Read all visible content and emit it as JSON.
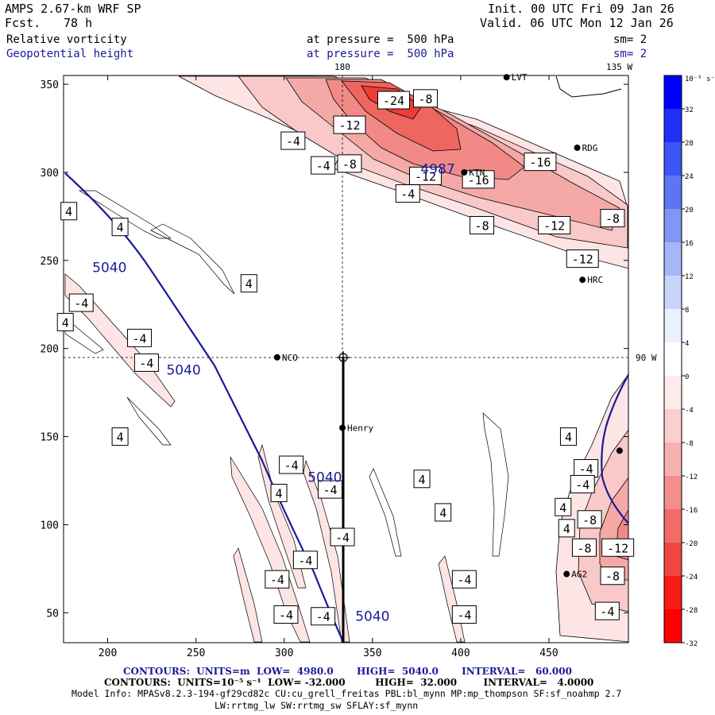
{
  "header": {
    "title": "AMPS 2.67-km WRF SP",
    "forecast_label": "Fcst.",
    "forecast_value": "78 h",
    "init": "Init. 00 UTC Fri 09 Jan 26",
    "valid": "Valid. 06 UTC Mon 12 Jan 26",
    "field1": {
      "name": "Relative vorticity",
      "pressure": "at pressure =  500 hPa",
      "sm": "sm= 2"
    },
    "field2": {
      "name": "Geopotential height",
      "pressure": "at pressure =  500 hPa",
      "sm": "sm= 2"
    },
    "top_lon_label": "180",
    "top_right_label": "135 W",
    "right_mid_label": "90 W"
  },
  "colors": {
    "height_contour": "#1a1a9a",
    "positive_max": "#0000ff",
    "negative_max": "#ff0000"
  },
  "colorbar": {
    "unit_label": "10⁻⁵ s⁻¹",
    "labels": [
      "32",
      "28",
      "24",
      "20",
      "16",
      "12",
      "8",
      "4",
      "0",
      "-4",
      "-8",
      "-12",
      "-16",
      "-20",
      "-24",
      "-28",
      "-32"
    ],
    "colors": [
      "#0000ff",
      "#1f2ff8",
      "#3d55f4",
      "#5c76f2",
      "#7f97f3",
      "#a3b6f6",
      "#c8d4f9",
      "#ebf0fd",
      "#ffffff",
      "#fdeceb",
      "#f9cfce",
      "#f5b1af",
      "#f28f8c",
      "#f16b67",
      "#f24440",
      "#f81c18",
      "#ff0000"
    ]
  },
  "chart_data": {
    "type": "contour",
    "title": "Relative vorticity and Geopotential height at 500 hPa",
    "xlabel": "",
    "ylabel": "",
    "xlim": [
      175,
      495
    ],
    "ylim": [
      33,
      355
    ],
    "x_ticks": [
      200,
      250,
      300,
      350,
      400,
      450
    ],
    "y_ticks": [
      50,
      100,
      150,
      200,
      250,
      300,
      350
    ],
    "height_contours": {
      "units": "m",
      "values": [
        5040,
        5040,
        5040,
        5040
      ],
      "extra_label": "4987"
    },
    "vorticity_labels": [
      {
        "x": 362,
        "y": 341,
        "v": "-24"
      },
      {
        "x": 380,
        "y": 342,
        "v": "-8"
      },
      {
        "x": 337,
        "y": 327,
        "v": "-12"
      },
      {
        "x": 305,
        "y": 318,
        "v": "-4"
      },
      {
        "x": 322,
        "y": 304,
        "v": "-4"
      },
      {
        "x": 337,
        "y": 305,
        "v": "-8"
      },
      {
        "x": 380,
        "y": 298,
        "v": "-12"
      },
      {
        "x": 370,
        "y": 288,
        "v": "-4"
      },
      {
        "x": 410,
        "y": 296,
        "v": "-16"
      },
      {
        "x": 445,
        "y": 306,
        "v": "-16"
      },
      {
        "x": 486,
        "y": 274,
        "v": "-8"
      },
      {
        "x": 453,
        "y": 270,
        "v": "-12"
      },
      {
        "x": 412,
        "y": 270,
        "v": "-8"
      },
      {
        "x": 469,
        "y": 251,
        "v": "-12"
      },
      {
        "x": 178,
        "y": 278,
        "v": "4"
      },
      {
        "x": 207,
        "y": 269,
        "v": "4"
      },
      {
        "x": 280,
        "y": 237,
        "v": "4"
      },
      {
        "x": 185,
        "y": 226,
        "v": "-4"
      },
      {
        "x": 176,
        "y": 215,
        "v": "4"
      },
      {
        "x": 218,
        "y": 206,
        "v": "-4"
      },
      {
        "x": 222,
        "y": 192,
        "v": "-4"
      },
      {
        "x": 207,
        "y": 150,
        "v": "4"
      },
      {
        "x": 304,
        "y": 134,
        "v": "-4"
      },
      {
        "x": 326,
        "y": 120,
        "v": "-4"
      },
      {
        "x": 297,
        "y": 118,
        "v": "4"
      },
      {
        "x": 378,
        "y": 126,
        "v": "4"
      },
      {
        "x": 390,
        "y": 107,
        "v": "4"
      },
      {
        "x": 333,
        "y": 93,
        "v": "-4"
      },
      {
        "x": 312,
        "y": 80,
        "v": "-4"
      },
      {
        "x": 296,
        "y": 69,
        "v": "-4"
      },
      {
        "x": 402,
        "y": 69,
        "v": "-4"
      },
      {
        "x": 301,
        "y": 49,
        "v": "-4"
      },
      {
        "x": 322,
        "y": 48,
        "v": "-4"
      },
      {
        "x": 402,
        "y": 49,
        "v": "-4"
      },
      {
        "x": 461,
        "y": 150,
        "v": "4"
      },
      {
        "x": 458,
        "y": 110,
        "v": "4"
      },
      {
        "x": 460,
        "y": 98,
        "v": "4"
      },
      {
        "x": 471,
        "y": 132,
        "v": "-4"
      },
      {
        "x": 469,
        "y": 123,
        "v": "-4"
      },
      {
        "x": 473,
        "y": 103,
        "v": "-8"
      },
      {
        "x": 470,
        "y": 87,
        "v": "-8"
      },
      {
        "x": 489,
        "y": 87,
        "v": "-12"
      },
      {
        "x": 486,
        "y": 71,
        "v": "-8"
      },
      {
        "x": 483,
        "y": 51,
        "v": "-4"
      }
    ],
    "height_labels": [
      {
        "x": 201,
        "y": 246,
        "v": "5040"
      },
      {
        "x": 243,
        "y": 188,
        "v": "5040"
      },
      {
        "x": 323,
        "y": 127,
        "v": "5040"
      },
      {
        "x": 350,
        "y": 48,
        "v": "5040"
      },
      {
        "x": 387,
        "y": 302,
        "v": "4987"
      }
    ],
    "stations": [
      {
        "name": "LVT",
        "x": 426,
        "y": 354
      },
      {
        "name": "RDG",
        "x": 466,
        "y": 314
      },
      {
        "name": "KTN",
        "x": 402,
        "y": 300
      },
      {
        "name": "HRC",
        "x": 469,
        "y": 239
      },
      {
        "name": "NCO",
        "x": 296,
        "y": 195
      },
      {
        "name": "Henry",
        "x": 333,
        "y": 155
      },
      {
        "name": "AG2",
        "x": 460,
        "y": 72
      },
      {
        "name": "",
        "x": 490,
        "y": 142
      }
    ],
    "crosshair": {
      "x": 333,
      "y": 196
    },
    "track": {
      "x": 333,
      "y_from": 33,
      "y_to": 196
    }
  },
  "footer": {
    "line1": {
      "label": "CONTOURS:",
      "units": "UNITS=m",
      "low": "LOW=  4980.0",
      "high": "HIGH=  5040.0",
      "interval": "INTERVAL=   60.000"
    },
    "line2": {
      "label": "CONTOURS:",
      "units": "UNITS=10⁻⁵ s⁻¹",
      "low": "LOW= -32.000",
      "high": "HIGH=  32.000",
      "interval": "INTERVAL=   4.0000"
    },
    "model_info": "Model Info: MPASv8.2.3-194-gf29cd82c CU:cu_grell_freitas PBL:bl_mynn MP:mp_thompson SF:sf_noahmp 2.7",
    "model_info2": "LW:rrtmg_lw SW:rrtmg_sw SFLAY:sf_mynn"
  }
}
